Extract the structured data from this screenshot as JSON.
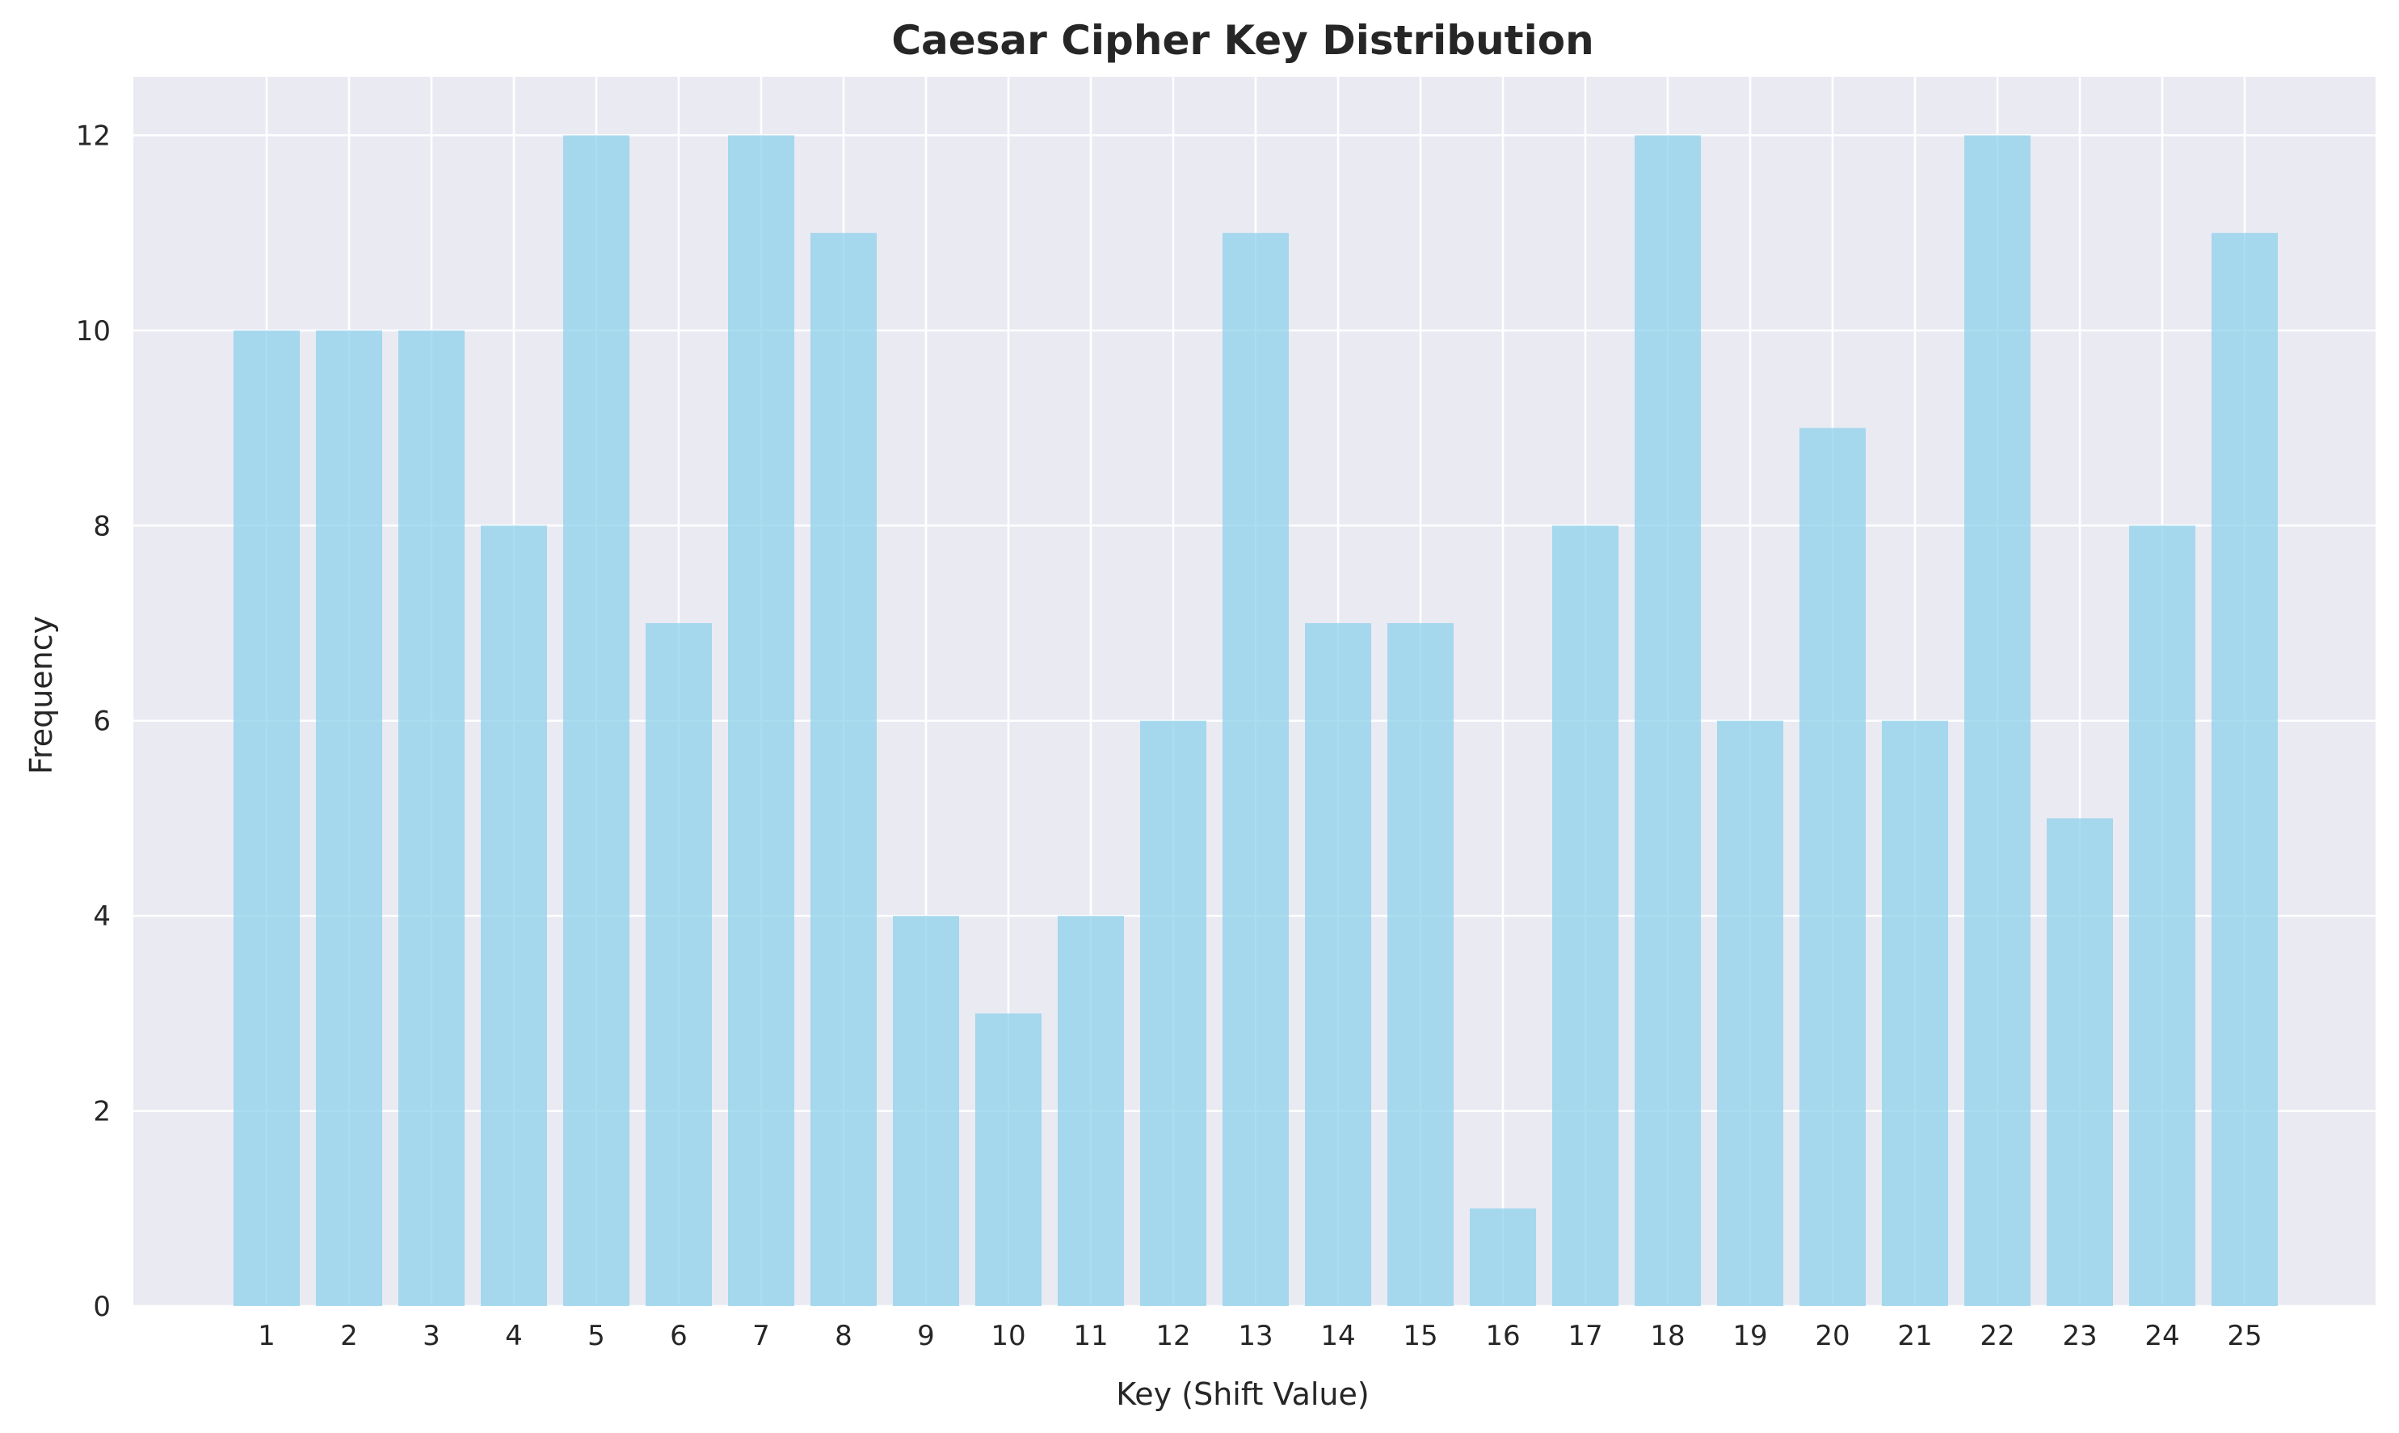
{
  "chart_data": {
    "type": "bar",
    "title": "Caesar Cipher Key Distribution",
    "xlabel": "Key (Shift Value)",
    "ylabel": "Frequency",
    "categories": [
      "1",
      "2",
      "3",
      "4",
      "5",
      "6",
      "7",
      "8",
      "9",
      "10",
      "11",
      "12",
      "13",
      "14",
      "15",
      "16",
      "17",
      "18",
      "19",
      "20",
      "21",
      "22",
      "23",
      "24",
      "25"
    ],
    "values": [
      10,
      10,
      10,
      8,
      12,
      7,
      12,
      11,
      4,
      3,
      4,
      6,
      11,
      7,
      7,
      1,
      8,
      12,
      6,
      9,
      6,
      12,
      5,
      8,
      11
    ],
    "ylim": [
      0,
      12.6
    ],
    "yticks": [
      0,
      2,
      4,
      6,
      8,
      10,
      12
    ],
    "grid": true,
    "colors": {
      "bar": "#87ceeb",
      "background": "#eaeaf2",
      "grid": "#ffffff"
    }
  }
}
